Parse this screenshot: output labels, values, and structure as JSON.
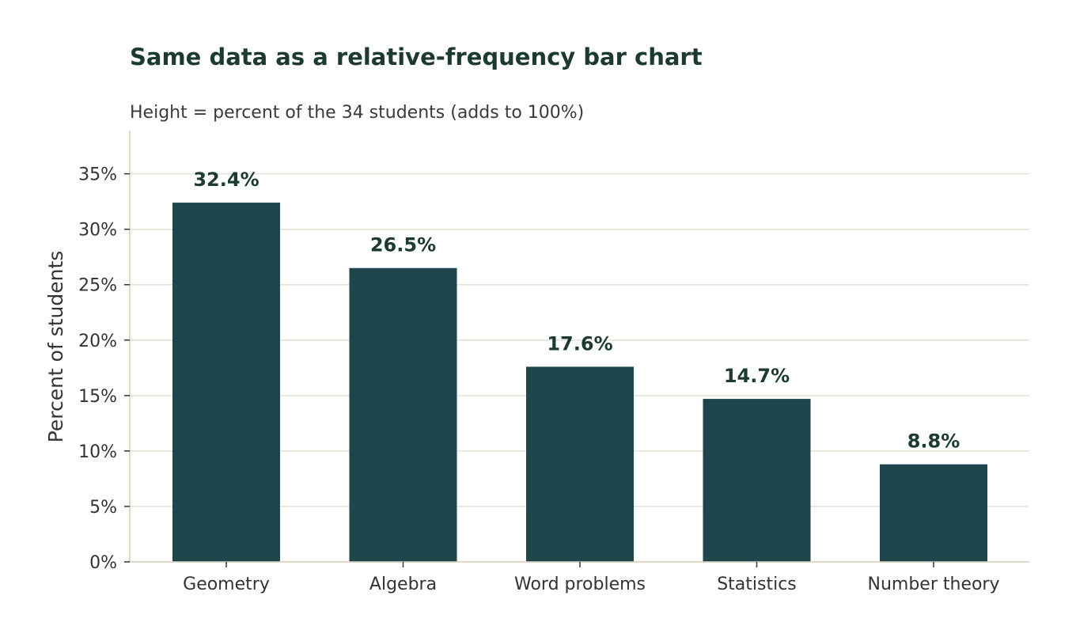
{
  "chart_data": {
    "type": "bar",
    "title": "Same data as a relative-frequency bar chart",
    "subtitle": "Height = percent of the 34 students (adds to 100%)",
    "xlabel": "",
    "ylabel": "Percent of students",
    "categories": [
      "Geometry",
      "Algebra",
      "Word problems",
      "Statistics",
      "Number theory"
    ],
    "values": [
      32.4,
      26.5,
      17.6,
      14.7,
      8.8
    ],
    "data_labels": [
      "32.4%",
      "26.5%",
      "17.6%",
      "14.7%",
      "8.8%"
    ],
    "yticks": [
      0,
      5,
      10,
      15,
      20,
      25,
      30,
      35
    ],
    "ytick_labels": [
      "0%",
      "5%",
      "10%",
      "15%",
      "20%",
      "25%",
      "30%",
      "35%"
    ],
    "ylim": [
      0,
      38.9
    ],
    "grid": "horizontal",
    "legend": "none",
    "bar_color": "#1e464c"
  }
}
